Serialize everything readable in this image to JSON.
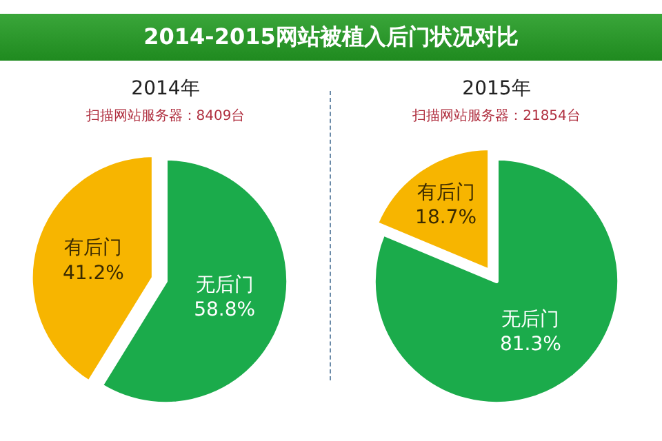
{
  "chart_data": [
    {
      "type": "pie",
      "title": "2014年",
      "subtitle": "扫描网站服务器：8409台",
      "annotations": [
        "2014-2015网站被植入后门状况对比"
      ],
      "categories": [
        "无后门",
        "有后门"
      ],
      "values": [
        58.8,
        41.2
      ],
      "colors": [
        "#1bab4b",
        "#f7b500"
      ],
      "value_labels": [
        "58.8%",
        "41.2%"
      ],
      "legend": false
    },
    {
      "type": "pie",
      "title": "2015年",
      "subtitle": "扫描网站服务器：21854台",
      "categories": [
        "无后门",
        "有后门"
      ],
      "values": [
        81.3,
        18.7
      ],
      "colors": [
        "#1bab4b",
        "#f7b500"
      ],
      "value_labels": [
        "81.3%",
        "18.7%"
      ],
      "legend": false
    }
  ]
}
